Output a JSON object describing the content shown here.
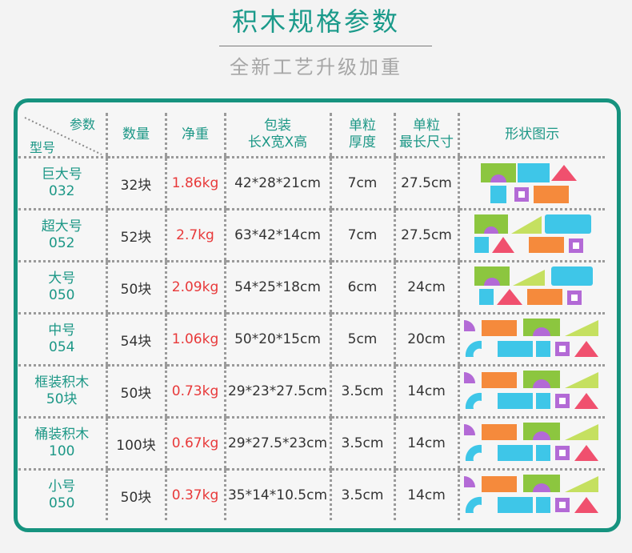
{
  "title": "积木规格参数",
  "subtitle": "全新工艺升级加重",
  "table": {
    "corner_top": "参数",
    "corner_bottom": "型号",
    "headers": {
      "qty": "数量",
      "weight": "净重",
      "pack_line1": "包装",
      "pack_line2": "长X宽X高",
      "thick_line1": "单粒",
      "thick_line2": "厚度",
      "len_line1": "单粒",
      "len_line2": "最长尺寸",
      "shape": "形状图示"
    },
    "rows": [
      {
        "name": "巨大号",
        "code": "032",
        "qty": "32块",
        "weight": "1.86kg",
        "pack": "42*28*21cm",
        "thick": "7cm",
        "len": "27.5cm"
      },
      {
        "name": "超大号",
        "code": "052",
        "qty": "52块",
        "weight": "2.7kg",
        "pack": "63*42*14cm",
        "thick": "7cm",
        "len": "27.5cm"
      },
      {
        "name": "大号",
        "code": "050",
        "qty": "50块",
        "weight": "2.09kg",
        "pack": "54*25*18cm",
        "thick": "6cm",
        "len": "24cm"
      },
      {
        "name": "中号",
        "code": "054",
        "qty": "54块",
        "weight": "1.06kg",
        "pack": "50*20*15cm",
        "thick": "5cm",
        "len": "20cm"
      },
      {
        "name": "框装积木",
        "code": "50块",
        "qty": "50块",
        "weight": "0.73kg",
        "pack": "29*23*27.5cm",
        "thick": "3.5cm",
        "len": "14cm"
      },
      {
        "name": "桶装积木",
        "code": "100",
        "qty": "100块",
        "weight": "0.67kg",
        "pack": "29*27.5*23cm",
        "thick": "3.5cm",
        "len": "14cm"
      },
      {
        "name": "小号",
        "code": "050",
        "qty": "50块",
        "weight": "0.37kg",
        "pack": "35*14*10.5cm",
        "thick": "3.5cm",
        "len": "14cm"
      }
    ]
  },
  "colors": {
    "accent": "#16937f",
    "weight": "#e8393a",
    "block_green": "#8cc63f",
    "block_cyan": "#3ec6e8",
    "block_pink": "#f0506e",
    "block_purple": "#b36ad6",
    "block_orange": "#f58a3c",
    "block_lime": "#c5e060"
  }
}
